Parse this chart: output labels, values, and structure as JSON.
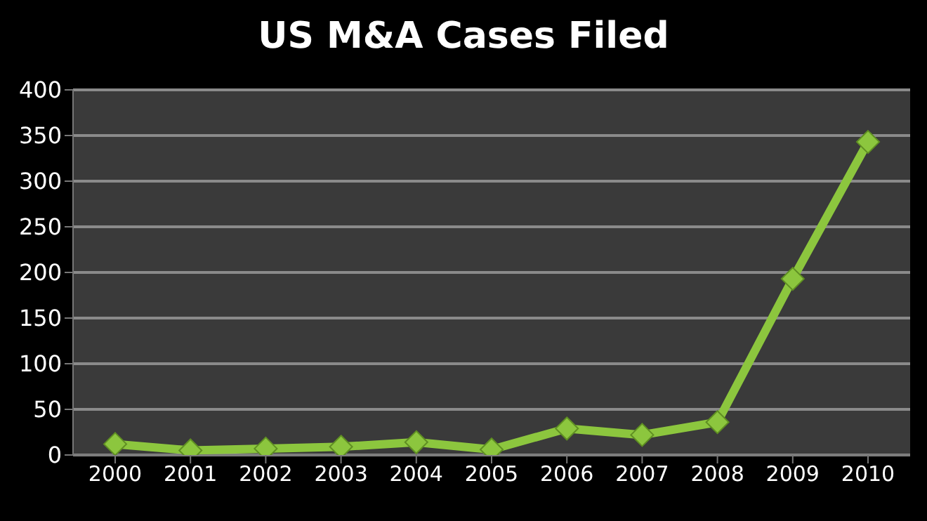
{
  "chart_data": {
    "type": "line",
    "title": "US M&A Cases Filed",
    "categories": [
      "2000",
      "2001",
      "2002",
      "2003",
      "2004",
      "2005",
      "2006",
      "2007",
      "2008",
      "2009",
      "2010"
    ],
    "series": [
      {
        "color": "#8cc63e",
        "values": [
          12,
          5,
          7,
          9,
          14,
          6,
          29,
          22,
          36,
          193,
          343
        ]
      }
    ],
    "ylim": [
      0,
      400
    ],
    "yticks": [
      0,
      50,
      100,
      150,
      200,
      250,
      300,
      350,
      400
    ],
    "grid": "y",
    "marker": "diamond",
    "line_style": "solid"
  }
}
